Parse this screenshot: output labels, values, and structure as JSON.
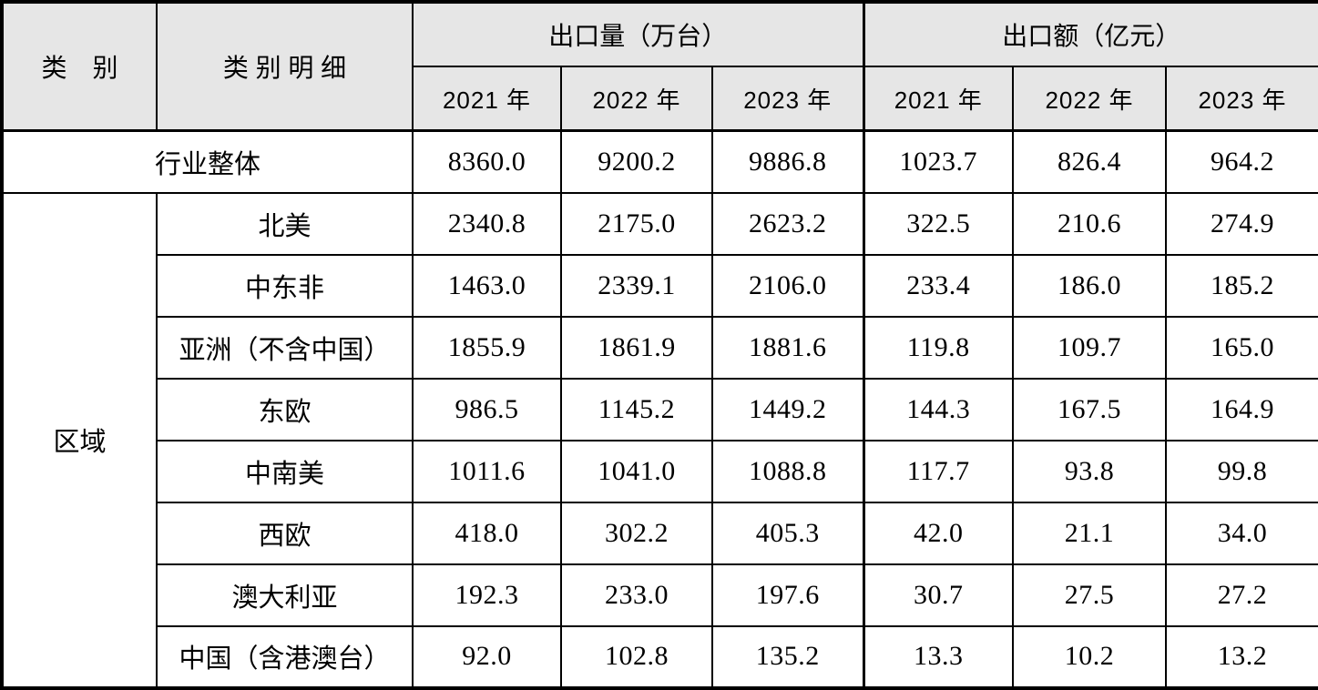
{
  "table": {
    "header": {
      "col_category": "类　别",
      "col_detail": "类 别 明 细",
      "group_volume": "出口量（万台）",
      "group_value": "出口额（亿元）",
      "years": [
        "2021 年",
        "2022 年",
        "2023 年"
      ]
    },
    "overall_row": {
      "label": "行业整体",
      "values": [
        "8360.0",
        "9200.2",
        "9886.8",
        "1023.7",
        "826.4",
        "964.2"
      ]
    },
    "region_group": {
      "label": "区域",
      "rows": [
        {
          "label": "北美",
          "values": [
            "2340.8",
            "2175.0",
            "2623.2",
            "322.5",
            "210.6",
            "274.9"
          ]
        },
        {
          "label": "中东非",
          "values": [
            "1463.0",
            "2339.1",
            "2106.0",
            "233.4",
            "186.0",
            "185.2"
          ]
        },
        {
          "label": "亚洲（不含中国）",
          "values": [
            "1855.9",
            "1861.9",
            "1881.6",
            "119.8",
            "109.7",
            "165.0"
          ]
        },
        {
          "label": "东欧",
          "values": [
            "986.5",
            "1145.2",
            "1449.2",
            "144.3",
            "167.5",
            "164.9"
          ]
        },
        {
          "label": "中南美",
          "values": [
            "1011.6",
            "1041.0",
            "1088.8",
            "117.7",
            "93.8",
            "99.8"
          ]
        },
        {
          "label": "西欧",
          "values": [
            "418.0",
            "302.2",
            "405.3",
            "42.0",
            "21.1",
            "34.0"
          ]
        },
        {
          "label": "澳大利亚",
          "values": [
            "192.3",
            "233.0",
            "197.6",
            "30.7",
            "27.5",
            "27.2"
          ]
        },
        {
          "label": "中国（含港澳台）",
          "values": [
            "92.0",
            "102.8",
            "135.2",
            "13.3",
            "10.2",
            "13.2"
          ]
        }
      ]
    },
    "colors": {
      "header_bg": "#e6e6e6",
      "border": "#000000",
      "background": "#ffffff"
    }
  }
}
